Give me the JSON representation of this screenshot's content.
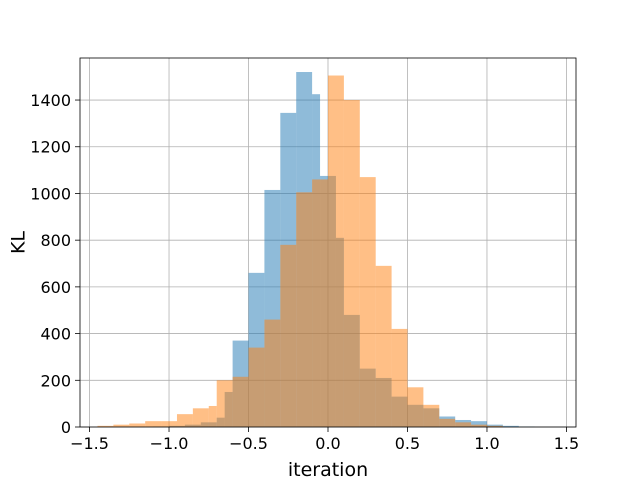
{
  "chart_data": {
    "type": "bar",
    "xlabel": "iteration",
    "ylabel": "KL",
    "xlim": [
      -1.56,
      1.56
    ],
    "ylim": [
      0,
      1580
    ],
    "grid": true,
    "xticks": [
      -1.5,
      -1.0,
      -0.5,
      0.0,
      0.5,
      1.0,
      1.5
    ],
    "xtick_labels": [
      "−1.5",
      "−1.0",
      "−0.5",
      "0.0",
      "0.5",
      "1.0",
      "1.5"
    ],
    "yticks": [
      0,
      200,
      400,
      600,
      800,
      1000,
      1200,
      1400
    ],
    "ytick_labels": [
      "0",
      "200",
      "400",
      "600",
      "800",
      "1000",
      "1200",
      "1400"
    ],
    "series": [
      {
        "color": "#1f77b4",
        "opacity": 0.5,
        "bin_edges": [
          -1.5,
          -1.4,
          -1.3,
          -1.2,
          -1.1,
          -1.0,
          -0.9,
          -0.8,
          -0.7,
          -0.65,
          -0.6,
          -0.5,
          -0.4,
          -0.3,
          -0.2,
          -0.1,
          -0.05,
          0.05,
          0.1,
          0.2,
          0.3,
          0.4,
          0.5,
          0.6,
          0.7,
          0.8,
          0.9,
          1.0,
          1.1,
          1.2,
          1.3,
          1.4,
          1.5
        ],
        "counts": [
          0,
          0,
          0,
          0,
          2,
          5,
          10,
          20,
          40,
          150,
          370,
          660,
          1015,
          1345,
          1520,
          1425,
          1075,
          810,
          480,
          250,
          210,
          130,
          95,
          80,
          45,
          30,
          25,
          10,
          5,
          2,
          0,
          0
        ]
      },
      {
        "color": "#ff7f0e",
        "opacity": 0.5,
        "bin_edges": [
          -1.45,
          -1.35,
          -1.25,
          -1.15,
          -1.05,
          -0.95,
          -0.85,
          -0.75,
          -0.7,
          -0.6,
          -0.5,
          -0.4,
          -0.3,
          -0.2,
          -0.1,
          0.0,
          0.1,
          0.2,
          0.3,
          0.4,
          0.5,
          0.6,
          0.7,
          0.8,
          0.9,
          1.0,
          1.1,
          1.2,
          1.3,
          1.4
        ],
        "counts": [
          5,
          10,
          15,
          25,
          25,
          55,
          80,
          90,
          200,
          215,
          340,
          460,
          780,
          1005,
          1060,
          1505,
          1400,
          1070,
          690,
          420,
          170,
          95,
          35,
          20,
          10,
          5,
          0,
          0,
          0
        ]
      }
    ]
  }
}
